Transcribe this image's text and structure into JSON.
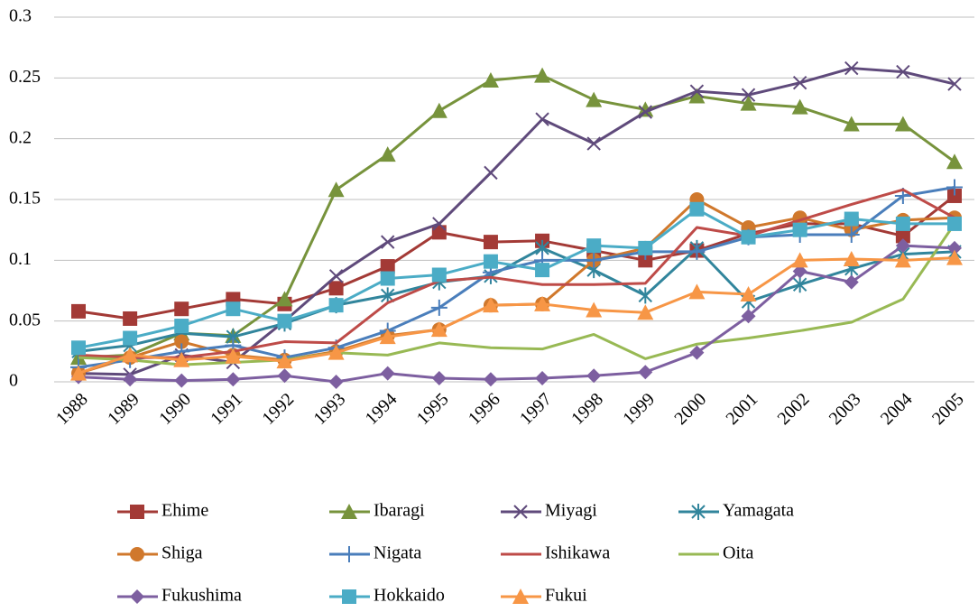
{
  "chart_data": {
    "type": "line",
    "categories": [
      "1988",
      "1989",
      "1990",
      "1991",
      "1992",
      "1993",
      "1994",
      "1995",
      "1996",
      "1997",
      "1998",
      "1999",
      "2000",
      "2001",
      "2002",
      "2003",
      "2004",
      "2005"
    ],
    "ylim": [
      0,
      0.3
    ],
    "yticks": [
      0,
      0.05,
      0.1,
      0.15,
      0.2,
      0.25,
      0.3
    ],
    "grid": true,
    "legend": "bottom",
    "series": [
      {
        "name": "Ehime",
        "color": "#a33a36",
        "marker": "square",
        "values": [
          0.058,
          0.052,
          0.06,
          0.068,
          0.064,
          0.077,
          0.095,
          0.123,
          0.115,
          0.116,
          0.108,
          0.1,
          0.108,
          0.122,
          0.13,
          0.13,
          0.12,
          0.153
        ]
      },
      {
        "name": "Ibaragi",
        "color": "#77933c",
        "marker": "triangle",
        "values": [
          0.02,
          0.022,
          0.04,
          0.038,
          0.068,
          0.158,
          0.187,
          0.223,
          0.248,
          0.252,
          0.232,
          0.224,
          0.235,
          0.229,
          0.226,
          0.212,
          0.212,
          0.181
        ]
      },
      {
        "name": "Miyagi",
        "color": "#5f4a7b",
        "marker": "x",
        "values": [
          0.007,
          0.006,
          0.022,
          0.016,
          0.05,
          0.087,
          0.115,
          0.13,
          0.172,
          0.216,
          0.196,
          0.222,
          0.239,
          0.236,
          0.246,
          0.258,
          0.255,
          0.245
        ]
      },
      {
        "name": "Yamagata",
        "color": "#31859c",
        "marker": "asterisk",
        "values": [
          0.025,
          0.03,
          0.04,
          0.037,
          0.048,
          0.063,
          0.071,
          0.082,
          0.087,
          0.11,
          0.092,
          0.071,
          0.11,
          0.066,
          0.08,
          0.093,
          0.105,
          0.107
        ]
      },
      {
        "name": "Shiga",
        "color": "#d0782c",
        "marker": "circle",
        "values": [
          0.007,
          0.02,
          0.033,
          0.022,
          0.018,
          0.025,
          0.038,
          0.043,
          0.063,
          0.064,
          0.1,
          0.11,
          0.15,
          0.127,
          0.135,
          0.125,
          0.133,
          0.135
        ]
      },
      {
        "name": "Nigata",
        "color": "#4a7ebb",
        "marker": "plus",
        "values": [
          0.012,
          0.018,
          0.025,
          0.03,
          0.02,
          0.028,
          0.042,
          0.061,
          0.09,
          0.1,
          0.1,
          0.107,
          0.107,
          0.119,
          0.121,
          0.121,
          0.153,
          0.16
        ]
      },
      {
        "name": "Ishikawa",
        "color": "#be4b48",
        "marker": "none",
        "values": [
          0.022,
          0.02,
          0.02,
          0.025,
          0.033,
          0.032,
          0.065,
          0.083,
          0.086,
          0.08,
          0.08,
          0.081,
          0.127,
          0.12,
          0.133,
          0.146,
          0.158,
          0.135
        ]
      },
      {
        "name": "Oita",
        "color": "#98b954",
        "marker": "none",
        "values": [
          0.02,
          0.018,
          0.014,
          0.016,
          0.018,
          0.024,
          0.022,
          0.032,
          0.028,
          0.027,
          0.039,
          0.019,
          0.031,
          0.036,
          0.042,
          0.049,
          0.068,
          0.13
        ]
      },
      {
        "name": "Fukushima",
        "color": "#7d5fa0",
        "marker": "diamond",
        "values": [
          0.004,
          0.002,
          0.001,
          0.002,
          0.005,
          0.0,
          0.007,
          0.003,
          0.002,
          0.003,
          0.005,
          0.008,
          0.024,
          0.054,
          0.091,
          0.082,
          0.112,
          0.11
        ]
      },
      {
        "name": "Hokkaido",
        "color": "#4bacc6",
        "marker": "square",
        "values": [
          0.028,
          0.036,
          0.046,
          0.06,
          0.05,
          0.063,
          0.085,
          0.088,
          0.099,
          0.092,
          0.112,
          0.11,
          0.142,
          0.119,
          0.125,
          0.134,
          0.13,
          0.13
        ]
      },
      {
        "name": "Fukui",
        "color": "#f79646",
        "marker": "triangle",
        "values": [
          0.007,
          0.022,
          0.018,
          0.021,
          0.017,
          0.024,
          0.037,
          0.043,
          0.063,
          0.064,
          0.059,
          0.057,
          0.074,
          0.072,
          0.1,
          0.101,
          0.1,
          0.102
        ]
      }
    ]
  }
}
